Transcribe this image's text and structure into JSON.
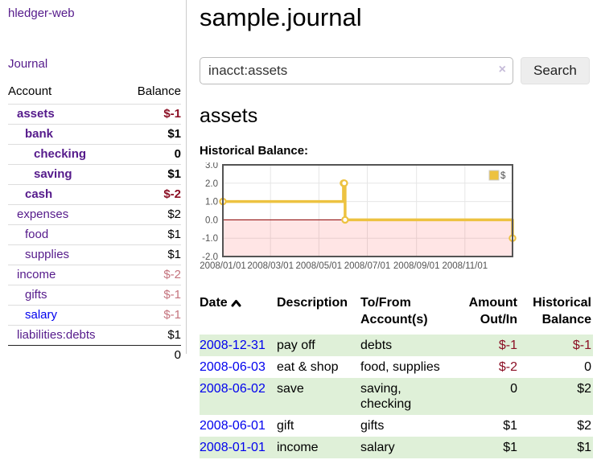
{
  "sidebar": {
    "brand": "hledger-web",
    "journal_link": "Journal",
    "account_header": "Account",
    "balance_header": "Balance",
    "accounts": [
      {
        "name": "assets",
        "balance": "$-1"
      },
      {
        "name": "bank",
        "balance": "$1"
      },
      {
        "name": "checking",
        "balance": "0"
      },
      {
        "name": "saving",
        "balance": "$1"
      },
      {
        "name": "cash",
        "balance": "$-2"
      },
      {
        "name": "expenses",
        "balance": "$2"
      },
      {
        "name": "food",
        "balance": "$1"
      },
      {
        "name": "supplies",
        "balance": "$1"
      },
      {
        "name": "income",
        "balance": "$-2"
      },
      {
        "name": "gifts",
        "balance": "$-1"
      },
      {
        "name": "salary",
        "balance": "$-1"
      },
      {
        "name": "liabilities:debts",
        "balance": "$1"
      }
    ],
    "total": "0"
  },
  "page": {
    "title": "sample.journal",
    "account_heading": "assets",
    "chart_title": "Historical Balance:"
  },
  "search": {
    "value": "inacct:assets",
    "clear_icon": "×",
    "search_button": "Search",
    "help_button": "?"
  },
  "chart_data": {
    "type": "line",
    "title": "Historical Balance",
    "series": [
      {
        "name": "$",
        "color": "#edc240",
        "step": true,
        "points": [
          [
            "2008-01-01",
            1
          ],
          [
            "2008-06-01",
            2
          ],
          [
            "2008-06-02",
            2
          ],
          [
            "2008-06-03",
            0
          ],
          [
            "2008-12-31",
            -1
          ]
        ]
      }
    ],
    "x_range": [
      "2008-01-01",
      "2008-12-31"
    ],
    "x_ticks": [
      "2008/01/01",
      "2008/03/01",
      "2008/05/01",
      "2008/07/01",
      "2008/09/01",
      "2008/11/01"
    ],
    "y_ticks": [
      3.0,
      2.0,
      1.0,
      0.0,
      -1.0,
      -2.0
    ],
    "ylim": [
      -2,
      3
    ],
    "grid": true,
    "legend": {
      "label": "$",
      "position": "top-right"
    },
    "zero_line_color": "#8b0000",
    "negative_region_fill": "rgba(255,0,0,0.1)"
  },
  "register": {
    "headers": {
      "date": "Date",
      "description": "Description",
      "accounts": "To/From Account(s)",
      "amount": "Amount Out/In",
      "balance": "Historical Balance"
    },
    "rows": [
      {
        "date": "2008-12-31",
        "description": "pay off",
        "accounts": "debts",
        "amount": "$-1",
        "balance": "$-1"
      },
      {
        "date": "2008-06-03",
        "description": "eat & shop",
        "accounts": "food, supplies",
        "amount": "$-2",
        "balance": "0"
      },
      {
        "date": "2008-06-02",
        "description": "save",
        "accounts": "saving, checking",
        "amount": "0",
        "balance": "$2"
      },
      {
        "date": "2008-06-01",
        "description": "gift",
        "accounts": "gifts",
        "amount": "$1",
        "balance": "$2"
      },
      {
        "date": "2008-01-01",
        "description": "income",
        "accounts": "salary",
        "amount": "$1",
        "balance": "$1"
      }
    ]
  },
  "colors": {
    "link_purple": "#551a8b",
    "link_blue": "#0000ee",
    "negative_dark": "#8b0f24",
    "negative_light": "#c4737d",
    "row_green": "#dff0d8",
    "series_gold": "#edc240",
    "zero_line": "#8b0000",
    "axis_text": "#545454"
  }
}
